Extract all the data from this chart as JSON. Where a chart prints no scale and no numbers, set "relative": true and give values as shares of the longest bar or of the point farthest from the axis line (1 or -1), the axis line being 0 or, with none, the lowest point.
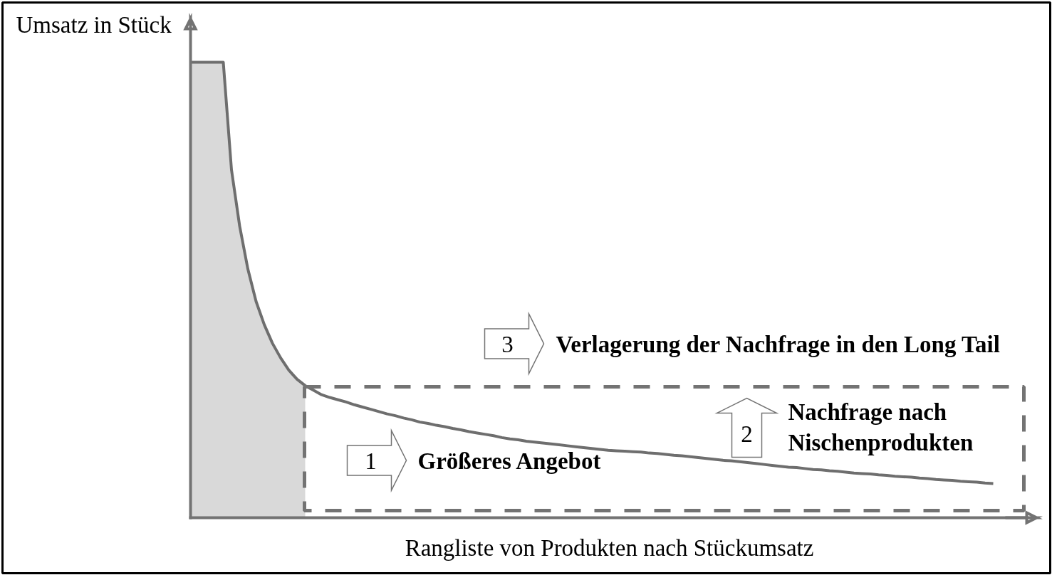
{
  "chart_data": {
    "type": "line",
    "relative": true,
    "line_style": "solid",
    "xlabel": "Rangliste von Produkten nach Stückumsatz",
    "ylabel": "Umsatz in Stück",
    "categories": [
      null,
      null,
      null,
      null,
      null,
      null,
      null,
      null,
      null,
      null,
      null,
      null,
      null,
      null,
      null,
      null,
      null,
      null,
      null,
      null,
      null,
      null,
      null,
      null,
      null,
      null,
      null,
      null,
      null,
      null,
      null,
      null,
      null,
      null,
      null,
      null,
      null,
      null,
      null,
      null,
      null,
      null,
      null,
      null,
      null,
      null,
      null,
      null,
      null,
      null,
      null,
      null,
      null,
      null,
      null,
      null,
      null,
      null,
      null,
      null,
      null,
      null,
      null,
      null,
      null,
      null,
      null,
      null,
      null,
      null,
      null,
      null,
      null,
      null,
      null,
      null,
      null,
      null,
      null,
      null,
      null,
      null,
      null,
      null,
      null,
      null,
      null,
      null,
      null,
      null,
      null,
      null,
      null,
      null,
      null,
      null,
      null,
      null,
      null
    ],
    "series": [
      {
        "type": "area",
        "color": "#d9d9d9",
        "values": [
          1,
          1,
          1,
          1,
          1,
          0.764,
          0.64,
          0.546,
          0.475,
          0.424,
          0.383,
          0.351,
          0.324,
          0.304,
          0.29,
          null,
          null,
          null,
          null,
          null,
          null,
          null,
          null,
          null,
          null,
          null,
          null,
          null,
          null,
          null,
          null,
          null,
          null,
          null,
          null,
          null,
          null,
          null,
          null,
          null,
          null,
          null,
          null,
          null,
          null,
          null,
          null,
          null,
          null,
          null,
          null,
          null,
          null,
          null,
          null,
          null,
          null,
          null,
          null,
          null,
          null,
          null,
          null,
          null,
          null,
          null,
          null,
          null,
          null,
          null,
          null,
          null,
          null,
          null,
          null,
          null,
          null,
          null,
          null,
          null,
          null,
          null,
          null,
          null,
          null,
          null,
          null,
          null,
          null,
          null,
          null,
          null,
          null,
          null,
          null,
          null,
          null,
          null,
          null
        ]
      },
      {
        "color": "#6e6e6e",
        "values": [
          1,
          1,
          1,
          1,
          1,
          0.764,
          0.64,
          0.546,
          0.475,
          0.424,
          0.383,
          0.351,
          0.324,
          0.304,
          0.29,
          0.28,
          0.27,
          0.264,
          0.259,
          0.254,
          0.248,
          0.243,
          0.238,
          0.233,
          0.228,
          0.224,
          0.219,
          0.215,
          0.21,
          0.207,
          0.203,
          0.2,
          0.196,
          0.193,
          0.189,
          0.186,
          0.183,
          0.18,
          0.176,
          0.173,
          0.171,
          0.168,
          0.166,
          0.164,
          0.162,
          0.16,
          0.158,
          0.156,
          0.154,
          0.152,
          0.15,
          0.148,
          0.147,
          0.146,
          0.145,
          0.144,
          0.142,
          0.141,
          0.139,
          0.137,
          0.136,
          0.134,
          0.132,
          0.13,
          0.128,
          0.126,
          0.125,
          0.123,
          0.121,
          0.119,
          0.117,
          0.115,
          0.113,
          0.111,
          0.11,
          0.108,
          0.106,
          0.105,
          0.103,
          0.102,
          0.1,
          0.098,
          0.097,
          0.096,
          0.094,
          0.093,
          0.091,
          0.09,
          0.089,
          0.087,
          0.086,
          0.084,
          0.083,
          0.082,
          0.08,
          0.079,
          0.078,
          0.076,
          0.075
        ]
      }
    ],
    "annotations": [
      "1",
      "Größeres Angebot",
      "2",
      "Nachfrage nach\nNischenprodukten",
      "3",
      "Verlagerung der Nachfrage in den Long Tail"
    ]
  }
}
